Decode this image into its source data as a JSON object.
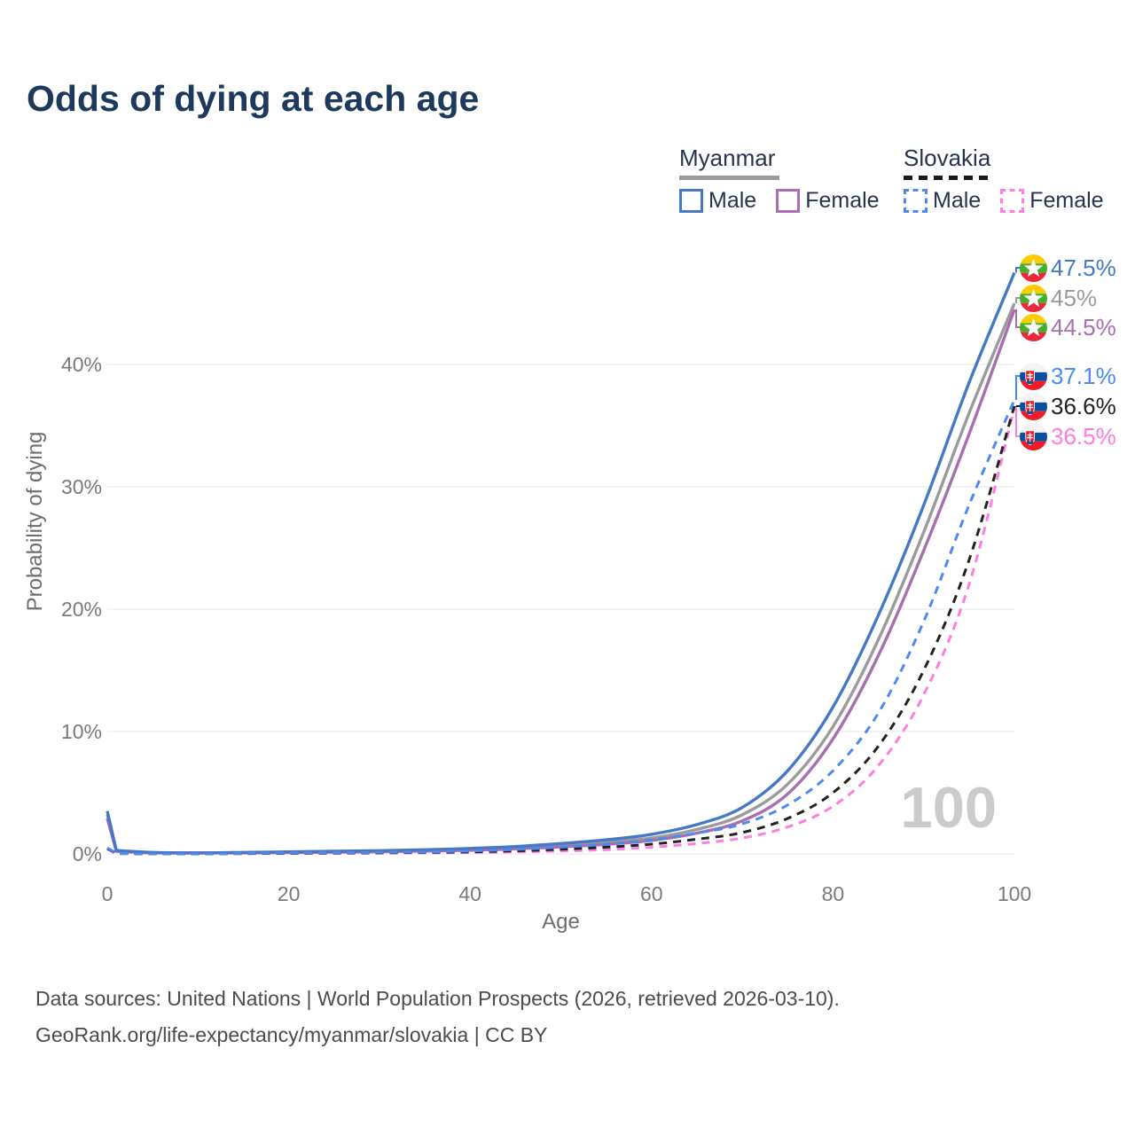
{
  "title": "Odds of dying at each age",
  "legend": {
    "groups": [
      {
        "country": "Myanmar",
        "line_style": "solid",
        "line_color": "#9b9b9b",
        "items": [
          {
            "label": "Male"
          },
          {
            "label": "Female"
          }
        ]
      },
      {
        "country": "Slovakia",
        "line_style": "dashed",
        "line_color": "#1a1a1a",
        "items": [
          {
            "label": "Male"
          },
          {
            "label": "Female"
          }
        ]
      }
    ]
  },
  "watermark": "100",
  "footer": {
    "line1": "Data sources: United Nations | World Population Prospects (2026, retrieved 2026-03-10).",
    "line2": "GeoRank.org/life-expectancy/myanmar/slovakia | CC BY"
  },
  "chart_data": {
    "type": "line",
    "title": "Odds of dying at each age",
    "xlabel": "Age",
    "ylabel": "Probability of dying",
    "xlim": [
      0,
      100
    ],
    "ylim": [
      0,
      40
    ],
    "grid": true,
    "x_ticks": [
      0,
      20,
      40,
      60,
      80,
      100
    ],
    "y_ticks": [
      0,
      10,
      20,
      30,
      40
    ],
    "y_tick_suffix": "%",
    "legend_position": "top-right",
    "ages": [
      0,
      1,
      5,
      10,
      15,
      20,
      25,
      30,
      35,
      40,
      45,
      50,
      55,
      60,
      65,
      70,
      75,
      80,
      85,
      90,
      95,
      100
    ],
    "series": [
      {
        "id": "myanmar-male",
        "name": "Myanmar Male",
        "country": "Myanmar",
        "sex": "male",
        "dashed": false,
        "color": "#4579c6",
        "end_value": 47.5,
        "end_label": "47.5%",
        "values": [
          3.5,
          0.28,
          0.12,
          0.09,
          0.12,
          0.17,
          0.22,
          0.27,
          0.34,
          0.45,
          0.6,
          0.85,
          1.15,
          1.6,
          2.4,
          3.8,
          6.8,
          12.0,
          19.5,
          28.5,
          38.5,
          47.5
        ]
      },
      {
        "id": "myanmar-both",
        "name": "Myanmar Both sexes",
        "country": "Myanmar",
        "sex": "both",
        "dashed": false,
        "color": "#9b9b9b",
        "end_value": 45.0,
        "end_label": "45%",
        "values": [
          3.2,
          0.25,
          0.1,
          0.08,
          0.1,
          0.14,
          0.18,
          0.22,
          0.28,
          0.37,
          0.5,
          0.7,
          0.95,
          1.3,
          2.0,
          3.2,
          5.7,
          10.4,
          17.5,
          26.3,
          36.0,
          45.0
        ]
      },
      {
        "id": "myanmar-female",
        "name": "Myanmar Female",
        "country": "Myanmar",
        "sex": "female",
        "dashed": false,
        "color": "#a76fb0",
        "end_value": 44.5,
        "end_label": "44.5%",
        "values": [
          2.9,
          0.22,
          0.09,
          0.07,
          0.08,
          0.11,
          0.14,
          0.18,
          0.23,
          0.3,
          0.41,
          0.57,
          0.78,
          1.1,
          1.7,
          2.7,
          4.9,
          9.4,
          16.2,
          24.8,
          34.3,
          44.5
        ]
      },
      {
        "id": "slovakia-male",
        "name": "Slovakia Male",
        "country": "Slovakia",
        "sex": "male",
        "dashed": true,
        "color": "#4b8bf0",
        "end_value": 37.1,
        "end_label": "37.1%",
        "values": [
          0.5,
          0.04,
          0.01,
          0.01,
          0.04,
          0.08,
          0.1,
          0.12,
          0.16,
          0.24,
          0.36,
          0.55,
          0.8,
          1.15,
          1.7,
          2.45,
          4.0,
          6.8,
          11.5,
          19.0,
          28.5,
          37.1
        ]
      },
      {
        "id": "slovakia-both",
        "name": "Slovakia Both sexes",
        "country": "Slovakia",
        "sex": "both",
        "dashed": true,
        "color": "#222222",
        "end_value": 36.6,
        "end_label": "36.6%",
        "values": [
          0.45,
          0.03,
          0.01,
          0.01,
          0.03,
          0.05,
          0.07,
          0.09,
          0.12,
          0.17,
          0.25,
          0.38,
          0.55,
          0.8,
          1.2,
          1.75,
          2.9,
          5.0,
          8.8,
          15.0,
          24.0,
          36.6
        ]
      },
      {
        "id": "slovakia-female",
        "name": "Slovakia Female",
        "country": "Slovakia",
        "sex": "female",
        "dashed": true,
        "color": "#ff7ce0",
        "end_value": 36.5,
        "end_label": "36.5%",
        "values": [
          0.4,
          0.03,
          0.01,
          0.01,
          0.02,
          0.03,
          0.04,
          0.06,
          0.08,
          0.11,
          0.16,
          0.24,
          0.35,
          0.55,
          0.85,
          1.3,
          2.2,
          3.9,
          7.2,
          13.0,
          22.0,
          36.5
        ]
      }
    ]
  }
}
